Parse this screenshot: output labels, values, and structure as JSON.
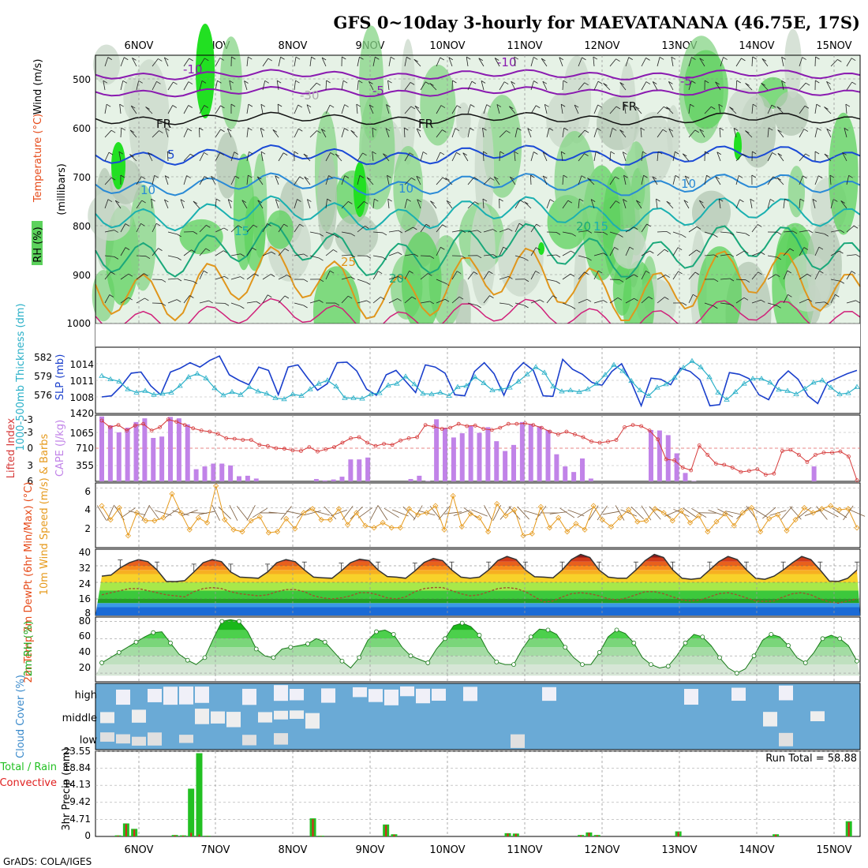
{
  "title": "GFS 0~10day 3-hourly for MAEVATANANA (46.75E, 17S)",
  "footer": "GrADS: COLA/IGES",
  "dates": [
    "6NOV",
    "7NOV",
    "8NOV",
    "9NOV",
    "10NOV",
    "11NOV",
    "12NOV",
    "13NOV",
    "14NOV",
    "15NOV"
  ],
  "chart_data": [
    {
      "type": "heatmap",
      "panel": "upper-air",
      "ylabel_parts": [
        "RH (%)",
        "Temperature (°C)",
        "Wind (m/s)"
      ],
      "ylabel2": "(millibars)",
      "y_ticks": [
        500,
        600,
        700,
        800,
        900,
        1000
      ],
      "ylim": [
        450,
        1000
      ],
      "freezing_label": "FR",
      "contour_labels": [
        "-10",
        "-5",
        "-30",
        "FR",
        "5",
        "10",
        "15",
        "20",
        "25"
      ]
    },
    {
      "type": "line",
      "panel": "thickness-slp",
      "ylabel_left": "1000-500mb Thickness (dm)",
      "ylabel_right": "SLP (mb)",
      "thickness_ticks": [
        "582",
        "579",
        "576"
      ],
      "slp_ticks": [
        "1014",
        "1011",
        "1008"
      ],
      "bottom_label": "1420",
      "series": [
        {
          "name": "SLP",
          "color": "#1a3fcc",
          "values": [
            1008.0,
            1008.2,
            1010,
            1012.3,
            1012.5,
            1010,
            1008.4,
            1012.5,
            1013.2,
            1014.2,
            1013.4,
            1014.6,
            1015.4,
            1012,
            1011,
            1010.2,
            1013.4,
            1012.8,
            1008.4,
            1013.4,
            1013.8,
            1011.4,
            1009.2,
            1010.4,
            1014.2,
            1014.3,
            1012.7,
            1009.4,
            1008.3,
            1012.0,
            1012.8,
            1010.8,
            1008.8,
            1013.8,
            1013.4,
            1012.3,
            1008.4,
            1008.2,
            1012.6,
            1014.2,
            1012.2,
            1008.3,
            1012.4,
            1014.2,
            1012.8,
            1008.2,
            1008.1,
            1014.8,
            1013.0,
            1012.1,
            1010.6,
            1010.1,
            1012.6,
            1014.0,
            1010.6,
            1006.4,
            1011.4,
            1011.2,
            1010.2,
            1013.2,
            1012.6,
            1011.1,
            1006.4,
            1006.6,
            1012.4,
            1012.1,
            1011.3,
            1008.4,
            1007.5,
            1011.0,
            1012.7,
            1011.2,
            1008.2,
            1006.8,
            1010.6,
            1011.4,
            1012.2,
            1012.8
          ]
        },
        {
          "name": "1000-500mb Thickness",
          "color": "#2ab0c8",
          "values": [
            579.8,
            579.2,
            578.8,
            577.4,
            576.8,
            577.1,
            576.4,
            576.6,
            576.8,
            578.0,
            579.6,
            580.2,
            579.4,
            577.6,
            576.3,
            576.9,
            576.4,
            577.8,
            577.0,
            576.6,
            575.8,
            575.6,
            576.5,
            576.2,
            577.4,
            578.4,
            579.0,
            577.9,
            575.8,
            575.8,
            575.7,
            576.5,
            576.7,
            578.1,
            578.4,
            579.7,
            578.3,
            576.6,
            576.5,
            576.8,
            576.2,
            577.8,
            578.0,
            579.6,
            578.5,
            577.2,
            577.4,
            577.7,
            578.8,
            580.1,
            581.4,
            580.4,
            577.9,
            577.0,
            577.2,
            576.9,
            577.4,
            578.4,
            580.0,
            581.8,
            580.7,
            578.9,
            577.2,
            576.2,
            577.7,
            578.3,
            579.5,
            581.3,
            582.5,
            581.4,
            579.6,
            576.8,
            575.5,
            576.9,
            578.4,
            579.3,
            579.3,
            578.6,
            577.3,
            577.1,
            576.5,
            577.5,
            578.6,
            579.0,
            577.7,
            576.5,
            576.7,
            577.8
          ]
        }
      ]
    },
    {
      "type": "bar",
      "panel": "cape-li",
      "ylabel_left": "Lifted Index",
      "ylabel_right": "CAPE (J/kg)",
      "li_ticks": [
        "-3",
        "-3",
        "0",
        "3",
        "6"
      ],
      "cape_ticks": [
        "1065",
        "710",
        "355"
      ],
      "series": [
        {
          "name": "CAPE",
          "color": "#c183e8",
          "values": [
            1390,
            1200,
            1050,
            1150,
            1270,
            1350,
            930,
            960,
            1380,
            1350,
            1220,
            260,
            320,
            380,
            380,
            340,
            110,
            120,
            60,
            0,
            0,
            0,
            0,
            0,
            0,
            50,
            20,
            40,
            100,
            470,
            470,
            510,
            0,
            0,
            0,
            0,
            50,
            120,
            10,
            1330,
            1150,
            940,
            1030,
            1200,
            1040,
            1160,
            860,
            650,
            780,
            1270,
            1230,
            1180,
            1100,
            580,
            320,
            200,
            490,
            60,
            0,
            0,
            0,
            0,
            0,
            0,
            1100,
            1090,
            990,
            600,
            180,
            10,
            0,
            0,
            0,
            0,
            0,
            0,
            0,
            0,
            0,
            0,
            0,
            0,
            0,
            320,
            0,
            0,
            0,
            0,
            0
          ]
        },
        {
          "name": "Lifted Index",
          "color": "#d63a3a",
          "values": [
            -5.0,
            -3.8,
            -4.2,
            -3.2,
            -4.1,
            -4.4,
            -3.2,
            -3.8,
            -5.2,
            -4.8,
            -4.2,
            -3.6,
            -3.2,
            -3.0,
            -2.6,
            -1.8,
            -1.7,
            -1.5,
            -1.5,
            -0.6,
            -0.4,
            0.0,
            0.1,
            0.4,
            0.5,
            -0.2,
            0.6,
            0.2,
            -0.2,
            -1.0,
            -1.8,
            -2.0,
            -1.0,
            -0.4,
            -0.8,
            -0.6,
            -1.4,
            -1.8,
            -2.0,
            -4.2,
            -3.9,
            -3.5,
            -3.7,
            -4.4,
            -4.0,
            -4.1,
            -3.5,
            -3.3,
            -3.7,
            -4.4,
            -4.4,
            -4.5,
            -4.2,
            -3.7,
            -3.0,
            -2.5,
            -3.0,
            -2.5,
            -2.0,
            -1.2,
            -1.0,
            -1.2,
            -1.5,
            -3.8,
            -4.2,
            -4.0,
            -3.2,
            -1.6,
            2.0,
            2.2,
            3.5,
            4.0,
            -0.5,
            1.2,
            2.8,
            3.0,
            3.5,
            4.3,
            4.1,
            3.8,
            4.8,
            4.6,
            0.5,
            0.3,
            1.2,
            2.5,
            1.2,
            0.8,
            0.8,
            0.6,
            1.5,
            5.8
          ]
        }
      ]
    },
    {
      "type": "line",
      "panel": "wind10m",
      "ylabel": "10m Wind Speed (m/s) & Barbs",
      "ylim": [
        0,
        6.5
      ],
      "y_ticks": [
        2,
        4,
        6
      ],
      "series": [
        {
          "name": "10m Wind Speed",
          "color": "#e69a1c",
          "values": [
            4.2,
            2.8,
            4.0,
            1.2,
            3.5,
            2.7,
            2.7,
            3.0,
            5.4,
            3.5,
            1.8,
            3.0,
            2.5,
            6.2,
            2.8,
            1.8,
            1.6,
            2.7,
            3.1,
            1.5,
            1.6,
            2.9,
            1.9,
            3.5,
            3.9,
            2.8,
            2.8,
            3.9,
            2.3,
            3.5,
            2.2,
            2.0,
            2.5,
            2.0,
            2.0,
            3.9,
            3.3,
            3.5,
            4.2,
            1.8,
            5.2,
            2.1,
            3.4,
            3.0,
            1.6,
            4.4,
            3.2,
            3.8,
            1.2,
            1.4,
            4.1,
            2.0,
            3.0,
            1.6,
            2.4,
            1.8,
            4.2,
            2.8,
            2.1,
            3.0,
            3.8,
            2.6,
            2.7,
            3.9,
            3.5,
            2.7,
            3.7,
            2.5,
            3.2,
            1.6,
            2.6,
            3.4,
            2.2,
            3.5,
            4.0,
            1.6,
            2.9,
            3.3,
            1.7,
            2.8,
            4.0,
            3.5,
            3.9,
            4.2,
            3.8,
            3.9,
            2.0
          ]
        }
      ]
    },
    {
      "type": "area",
      "panel": "temp2m",
      "ylabel": "2m Temp 2m DewPt (6hr Min/Max) (°C)",
      "ylim": [
        8,
        40
      ],
      "y_ticks": [
        8,
        16,
        24,
        32,
        40
      ],
      "series": [
        {
          "name": "2m Temp",
          "color": "#333333",
          "values": [
            27,
            27.5,
            31,
            33.5,
            35,
            34,
            30,
            24.5,
            24.4,
            24.8,
            29,
            33.5,
            35,
            34,
            29,
            26.5,
            26.3,
            26,
            29,
            33.5,
            35,
            34,
            30,
            26.5,
            26.2,
            26,
            29.5,
            33.5,
            35.2,
            34.5,
            30,
            26.8,
            26.5,
            26,
            29.5,
            33.6,
            35.5,
            34.5,
            30,
            26.5,
            26,
            26.5,
            30,
            34.5,
            36.5,
            35,
            30,
            26.7,
            26.5,
            26.2,
            30,
            35,
            37.5,
            36,
            30,
            26.5,
            26,
            26,
            30,
            34.5,
            37.5,
            36,
            30,
            26,
            25.5,
            26,
            30,
            34,
            36.5,
            35,
            30,
            26,
            25.5,
            27,
            30,
            33.5,
            36.5,
            35,
            30,
            24.6,
            24.5,
            26,
            30
          ]
        },
        {
          "name": "2m DewPt",
          "color": "#a0522d",
          "values": [
            18,
            19,
            20,
            21,
            21,
            20,
            19,
            18,
            17.5,
            17,
            19.5,
            21,
            21.5,
            21,
            19.5,
            18.5,
            18,
            17.5,
            18,
            19.5,
            20.5,
            20.5,
            19.5,
            17.5,
            16.5,
            16,
            16.5,
            17.5,
            19,
            19,
            18,
            16.5,
            16,
            17,
            19.5,
            21,
            21.5,
            21.5,
            20,
            18.5,
            17.5,
            18,
            19.5,
            21,
            21.5,
            21,
            19.5,
            17,
            14.5,
            15,
            17,
            18.5,
            19,
            18.5,
            17.5,
            16,
            15.5,
            16.5,
            18,
            19.5,
            19.5,
            18.5,
            17,
            15.5,
            15,
            15.5,
            17,
            18.5,
            19,
            18,
            16.5,
            15,
            14.8,
            15,
            17,
            18.5,
            19,
            18,
            16,
            14.5,
            14,
            15,
            16
          ]
        }
      ]
    },
    {
      "type": "area",
      "panel": "rh2m",
      "ylabel": "2m RH (%)",
      "ylim": [
        10,
        85
      ],
      "y_ticks": [
        20,
        40,
        60,
        80
      ],
      "series": [
        {
          "name": "2m RH",
          "color": "#22aa22",
          "values": [
            32,
            38,
            44,
            50,
            56,
            62,
            67,
            68,
            55,
            42,
            35,
            30,
            38,
            60,
            80,
            82,
            80,
            68,
            48,
            40,
            38,
            48,
            50,
            52,
            54,
            60,
            56,
            45,
            34,
            26,
            38,
            58,
            68,
            70,
            65,
            50,
            40,
            36,
            32,
            48,
            60,
            75,
            78,
            74,
            64,
            45,
            33,
            30,
            30,
            48,
            62,
            71,
            70,
            65,
            50,
            38,
            30,
            30,
            44,
            62,
            70,
            66,
            55,
            38,
            30,
            26,
            28,
            40,
            55,
            65,
            62,
            52,
            38,
            26,
            20,
            25,
            40,
            58,
            65,
            62,
            52,
            38,
            32,
            44,
            60,
            64,
            60,
            52,
            34
          ]
        }
      ]
    },
    {
      "type": "heatmap",
      "panel": "cloud-cover",
      "ylabel": "Cloud Cover (%)",
      "levels": [
        "high",
        "middle",
        "low"
      ]
    },
    {
      "type": "bar",
      "panel": "precip",
      "ylabel": "3hr Precip (mm)",
      "legend_parts": [
        "Total / Rain",
        "Convective"
      ],
      "run_total_label": "Run Total = 58.88",
      "y_ticks": [
        "23.55",
        "18.84",
        "14.13",
        "9.42",
        "4.71",
        "0"
      ],
      "ylim": [
        0,
        23.55
      ],
      "series": [
        {
          "name": "Total",
          "color": "#22c022",
          "values": [
            0,
            0,
            0.3,
            3.6,
            2.1,
            0,
            0,
            0,
            0,
            0.4,
            0.3,
            13.2,
            23.0,
            0.2,
            0,
            0,
            0,
            0,
            0,
            0,
            0,
            0,
            0,
            0,
            0,
            0,
            5.0,
            0.2,
            0,
            0,
            0,
            0,
            0,
            0,
            0,
            3.3,
            0.6,
            0,
            0,
            0,
            0,
            0,
            0,
            0,
            0,
            0,
            0,
            0,
            0,
            0,
            0.9,
            0.8,
            0,
            0,
            0,
            0,
            0,
            0,
            0,
            0.4,
            1.1,
            0.4,
            0,
            0,
            0,
            0,
            0,
            0,
            0,
            0,
            0,
            1.4,
            0,
            0,
            0,
            0,
            0,
            0,
            0,
            0,
            0,
            0,
            0,
            0.6,
            0,
            0,
            0,
            0,
            0,
            0,
            0,
            0,
            4.2,
            0
          ]
        },
        {
          "name": "Convective",
          "color": "#e02020",
          "values": [
            0,
            0,
            0.2,
            3.4,
            1.9,
            0,
            0,
            0,
            0,
            0.3,
            0.2,
            1.0,
            0.5,
            0.1,
            0,
            0,
            0,
            0,
            0,
            0,
            0,
            0,
            0,
            0,
            0,
            0,
            4.8,
            0.1,
            0,
            0,
            0,
            0,
            0,
            0,
            0,
            3.1,
            0.5,
            0,
            0,
            0,
            0,
            0,
            0,
            0,
            0,
            0,
            0,
            0,
            0,
            0,
            0.8,
            0.7,
            0,
            0,
            0,
            0,
            0,
            0,
            0,
            0.3,
            1.0,
            0.3,
            0,
            0,
            0,
            0,
            0,
            0,
            0,
            0,
            0,
            1.2,
            0,
            0,
            0,
            0,
            0,
            0,
            0,
            0,
            0,
            0,
            0,
            0.5,
            0,
            0,
            0,
            0,
            0,
            0,
            0,
            0,
            3.9,
            0
          ]
        }
      ]
    }
  ]
}
